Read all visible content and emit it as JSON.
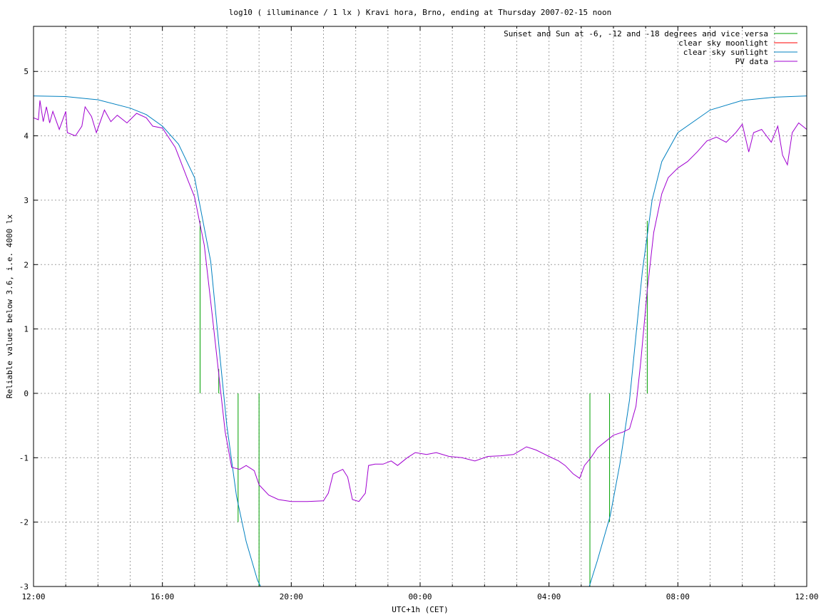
{
  "chart_data": {
    "type": "line",
    "title": "log10 ( illuminance / 1 lx ) Kravi hora, Brno, ending at Thursday 2007-02-15 noon",
    "xlabel": "UTC+1h (CET)",
    "ylabel": "Reliable values below 3.6, i.e. 4000 lx",
    "xlim": [
      12,
      36
    ],
    "ylim": [
      -3,
      5.7
    ],
    "x_ticks": [
      {
        "x": 12,
        "label": "12:00"
      },
      {
        "x": 16,
        "label": "16:00"
      },
      {
        "x": 20,
        "label": "20:00"
      },
      {
        "x": 24,
        "label": "00:00"
      },
      {
        "x": 28,
        "label": "04:00"
      },
      {
        "x": 32,
        "label": "08:00"
      },
      {
        "x": 36,
        "label": "12:00"
      }
    ],
    "y_ticks": [
      -3,
      -2,
      -1,
      0,
      1,
      2,
      3,
      4,
      5
    ],
    "grid": true,
    "legend_position": "top-right",
    "series": [
      {
        "name": "Sunset and Sun at -6, -12 and -18 degrees and vice versa",
        "color": "#00a000",
        "kind": "vertical-markers",
        "markers": [
          {
            "x": 17.17,
            "y": 2.68
          },
          {
            "x": 17.75,
            "y": 0.38
          },
          {
            "x": 18.35,
            "y": -2.0
          },
          {
            "x": 19.0,
            "y": -3.0
          },
          {
            "x": 29.27,
            "y": -3.0
          },
          {
            "x": 29.88,
            "y": -2.0
          },
          {
            "x": 30.5,
            "y": 0.0
          },
          {
            "x": 31.05,
            "y": 2.68
          }
        ]
      },
      {
        "name": "clear sky moonlight",
        "color": "#ff0000",
        "points": []
      },
      {
        "name": "clear sky sunlight",
        "color": "#0080c0",
        "points": [
          [
            12,
            4.62
          ],
          [
            13,
            4.61
          ],
          [
            14,
            4.56
          ],
          [
            15,
            4.43
          ],
          [
            15.5,
            4.33
          ],
          [
            16,
            4.15
          ],
          [
            16.5,
            3.87
          ],
          [
            17,
            3.35
          ],
          [
            17.5,
            2.05
          ],
          [
            17.8,
            0.5
          ],
          [
            18.0,
            -0.5
          ],
          [
            18.3,
            -1.6
          ],
          [
            18.6,
            -2.3
          ],
          [
            18.95,
            -2.9
          ],
          [
            19.05,
            -3.0
          ],
          [
            29.25,
            -3.0
          ],
          [
            29.5,
            -2.6
          ],
          [
            29.9,
            -1.9
          ],
          [
            30.2,
            -1.1
          ],
          [
            30.5,
            -0.1
          ],
          [
            30.7,
            0.9
          ],
          [
            30.9,
            1.9
          ],
          [
            31.2,
            3.0
          ],
          [
            31.5,
            3.6
          ],
          [
            32,
            4.05
          ],
          [
            33,
            4.4
          ],
          [
            34,
            4.55
          ],
          [
            35,
            4.6
          ],
          [
            36,
            4.62
          ]
        ]
      },
      {
        "name": "PV data",
        "color": "#a000d0",
        "points": [
          [
            12.0,
            4.28
          ],
          [
            12.15,
            4.25
          ],
          [
            12.2,
            4.55
          ],
          [
            12.3,
            4.22
          ],
          [
            12.4,
            4.45
          ],
          [
            12.5,
            4.2
          ],
          [
            12.6,
            4.38
          ],
          [
            12.8,
            4.1
          ],
          [
            13.0,
            4.38
          ],
          [
            13.05,
            4.05
          ],
          [
            13.3,
            4.0
          ],
          [
            13.5,
            4.15
          ],
          [
            13.6,
            4.45
          ],
          [
            13.8,
            4.3
          ],
          [
            13.95,
            4.05
          ],
          [
            14.2,
            4.4
          ],
          [
            14.4,
            4.22
          ],
          [
            14.6,
            4.32
          ],
          [
            14.9,
            4.2
          ],
          [
            15.2,
            4.35
          ],
          [
            15.5,
            4.28
          ],
          [
            15.7,
            4.15
          ],
          [
            16.0,
            4.12
          ],
          [
            16.4,
            3.82
          ],
          [
            16.8,
            3.3
          ],
          [
            17.0,
            3.05
          ],
          [
            17.3,
            2.3
          ],
          [
            17.55,
            1.2
          ],
          [
            17.75,
            0.3
          ],
          [
            17.95,
            -0.6
          ],
          [
            18.15,
            -1.15
          ],
          [
            18.4,
            -1.18
          ],
          [
            18.6,
            -1.12
          ],
          [
            18.85,
            -1.2
          ],
          [
            19.0,
            -1.42
          ],
          [
            19.3,
            -1.58
          ],
          [
            19.6,
            -1.65
          ],
          [
            20.0,
            -1.68
          ],
          [
            20.5,
            -1.68
          ],
          [
            21.0,
            -1.67
          ],
          [
            21.15,
            -1.55
          ],
          [
            21.3,
            -1.25
          ],
          [
            21.6,
            -1.18
          ],
          [
            21.75,
            -1.3
          ],
          [
            21.9,
            -1.65
          ],
          [
            22.1,
            -1.68
          ],
          [
            22.3,
            -1.55
          ],
          [
            22.4,
            -1.12
          ],
          [
            22.6,
            -1.1
          ],
          [
            22.85,
            -1.1
          ],
          [
            23.1,
            -1.05
          ],
          [
            23.3,
            -1.12
          ],
          [
            23.6,
            -1.0
          ],
          [
            23.85,
            -0.92
          ],
          [
            24.2,
            -0.95
          ],
          [
            24.5,
            -0.92
          ],
          [
            24.9,
            -0.98
          ],
          [
            25.3,
            -1.0
          ],
          [
            25.7,
            -1.05
          ],
          [
            26.1,
            -0.98
          ],
          [
            26.5,
            -0.97
          ],
          [
            26.9,
            -0.95
          ],
          [
            27.3,
            -0.83
          ],
          [
            27.6,
            -0.88
          ],
          [
            28.0,
            -0.98
          ],
          [
            28.3,
            -1.05
          ],
          [
            28.5,
            -1.12
          ],
          [
            28.75,
            -1.25
          ],
          [
            28.95,
            -1.32
          ],
          [
            29.1,
            -1.12
          ],
          [
            29.3,
            -1.0
          ],
          [
            29.5,
            -0.85
          ],
          [
            29.75,
            -0.75
          ],
          [
            30.0,
            -0.65
          ],
          [
            30.3,
            -0.6
          ],
          [
            30.5,
            -0.55
          ],
          [
            30.7,
            -0.2
          ],
          [
            30.85,
            0.5
          ],
          [
            31.05,
            1.6
          ],
          [
            31.25,
            2.5
          ],
          [
            31.5,
            3.1
          ],
          [
            31.7,
            3.35
          ],
          [
            32.0,
            3.5
          ],
          [
            32.3,
            3.6
          ],
          [
            32.6,
            3.75
          ],
          [
            32.9,
            3.92
          ],
          [
            33.2,
            3.98
          ],
          [
            33.5,
            3.9
          ],
          [
            33.8,
            4.05
          ],
          [
            34.0,
            4.18
          ],
          [
            34.2,
            3.75
          ],
          [
            34.35,
            4.05
          ],
          [
            34.6,
            4.1
          ],
          [
            34.9,
            3.9
          ],
          [
            35.1,
            4.15
          ],
          [
            35.25,
            3.7
          ],
          [
            35.4,
            3.55
          ],
          [
            35.55,
            4.05
          ],
          [
            35.75,
            4.2
          ],
          [
            36.0,
            4.1
          ]
        ]
      }
    ]
  }
}
